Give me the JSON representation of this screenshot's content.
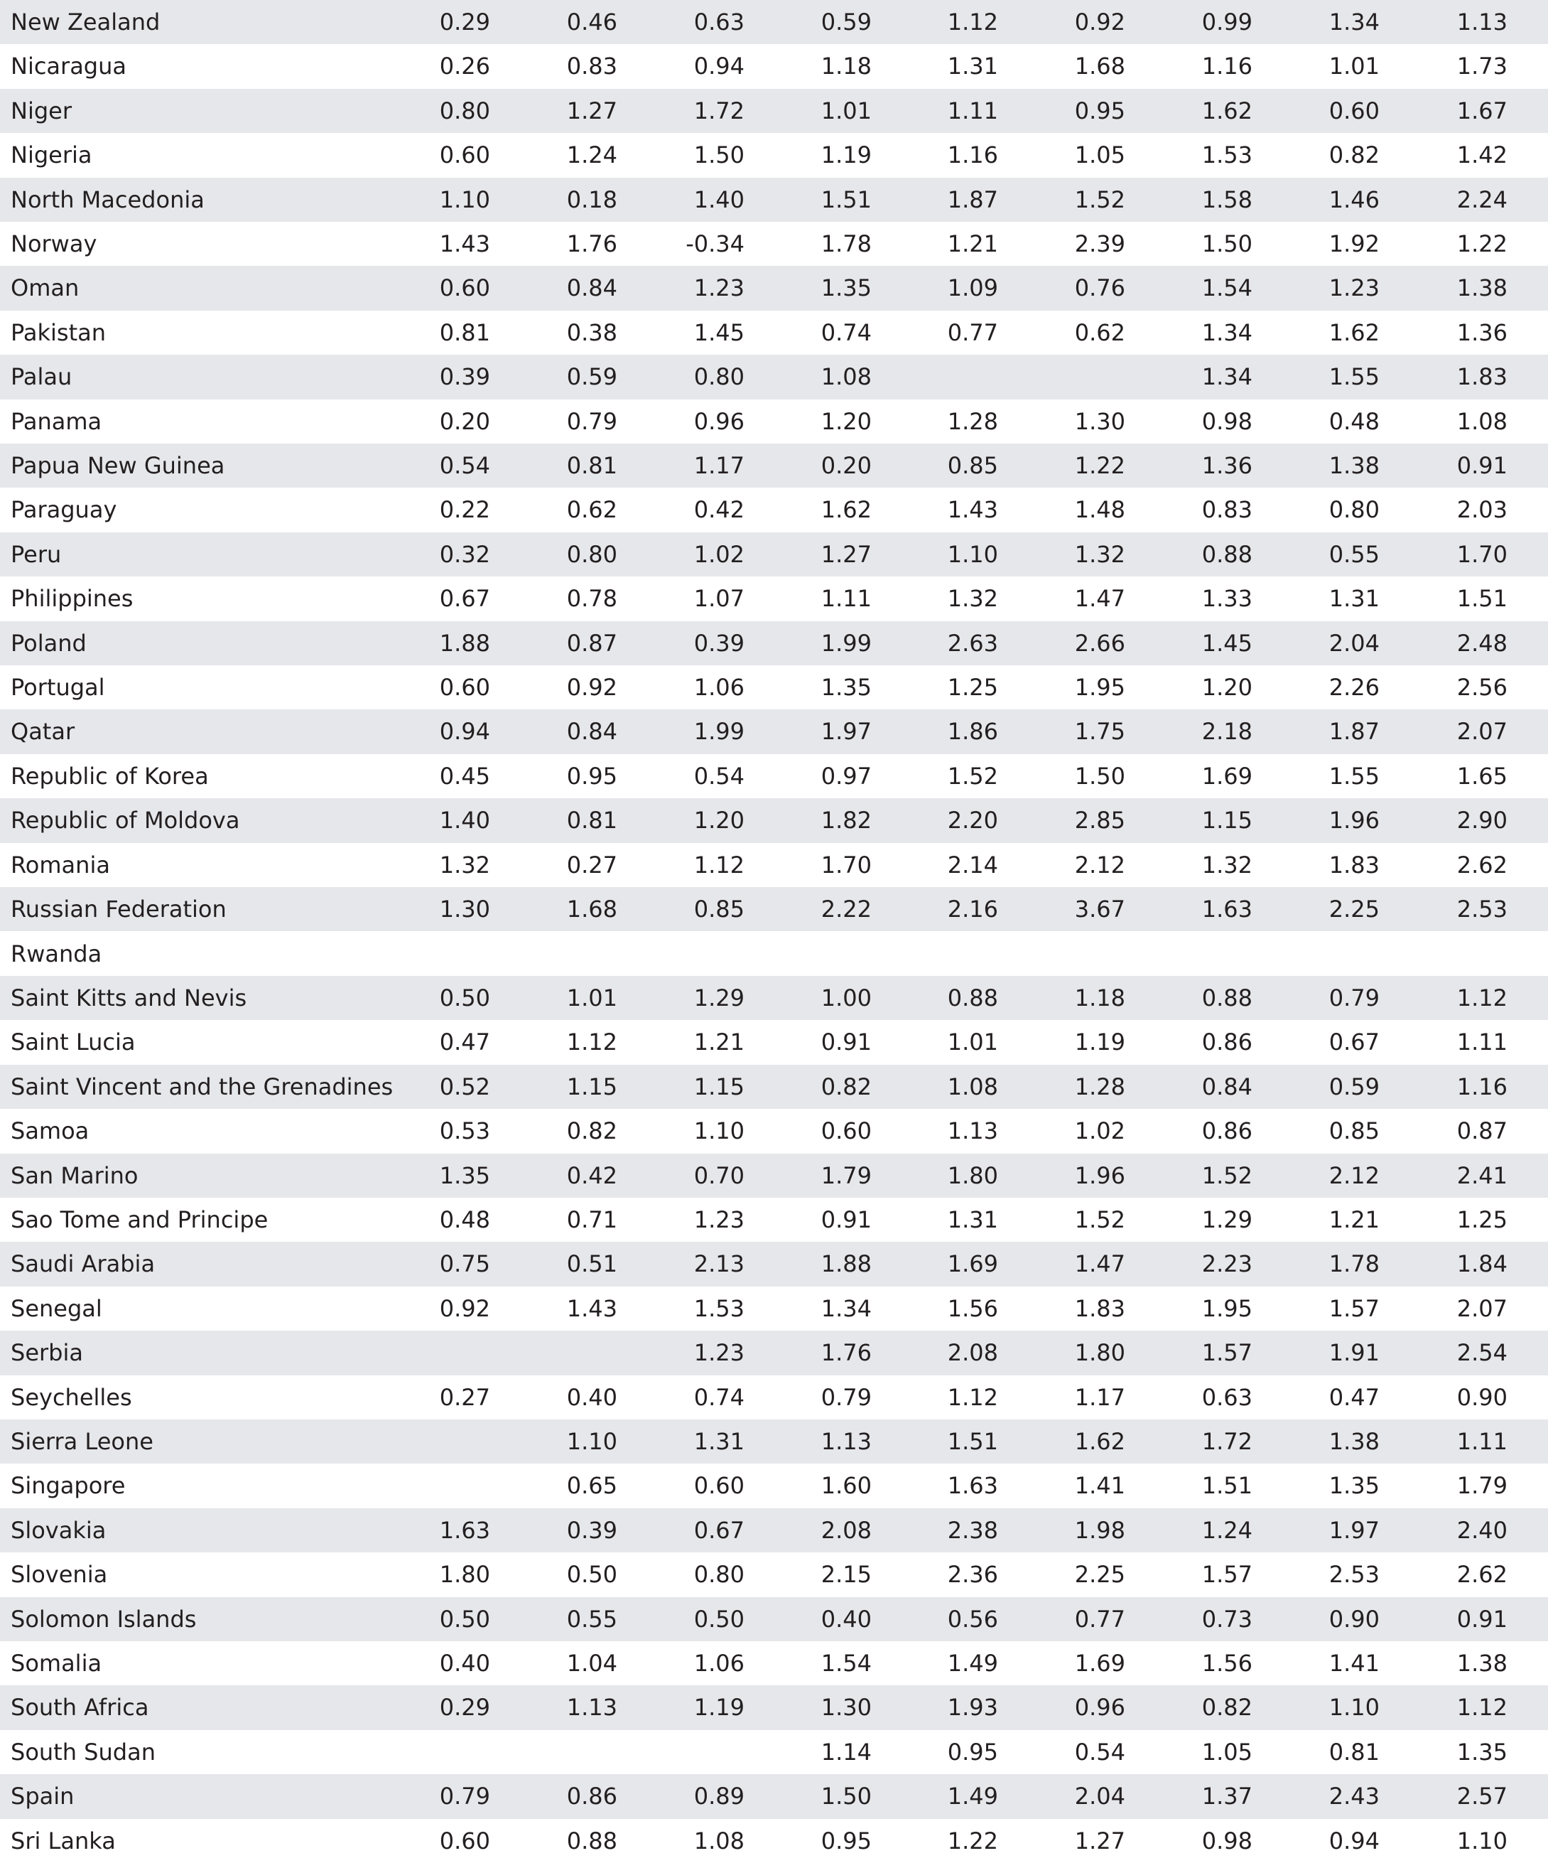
{
  "table": {
    "rows": [
      [
        "New Zealand",
        "0.29",
        "0.46",
        "0.63",
        "0.59",
        "1.12",
        "0.92",
        "0.99",
        "1.34",
        "1.13"
      ],
      [
        "Nicaragua",
        "0.26",
        "0.83",
        "0.94",
        "1.18",
        "1.31",
        "1.68",
        "1.16",
        "1.01",
        "1.73"
      ],
      [
        "Niger",
        "0.80",
        "1.27",
        "1.72",
        "1.01",
        "1.11",
        "0.95",
        "1.62",
        "0.60",
        "1.67"
      ],
      [
        "Nigeria",
        "0.60",
        "1.24",
        "1.50",
        "1.19",
        "1.16",
        "1.05",
        "1.53",
        "0.82",
        "1.42"
      ],
      [
        "North Macedonia",
        "1.10",
        "0.18",
        "1.40",
        "1.51",
        "1.87",
        "1.52",
        "1.58",
        "1.46",
        "2.24"
      ],
      [
        "Norway",
        "1.43",
        "1.76",
        "-0.34",
        "1.78",
        "1.21",
        "2.39",
        "1.50",
        "1.92",
        "1.22"
      ],
      [
        "Oman",
        "0.60",
        "0.84",
        "1.23",
        "1.35",
        "1.09",
        "0.76",
        "1.54",
        "1.23",
        "1.38"
      ],
      [
        "Pakistan",
        "0.81",
        "0.38",
        "1.45",
        "0.74",
        "0.77",
        "0.62",
        "1.34",
        "1.62",
        "1.36"
      ],
      [
        "Palau",
        "0.39",
        "0.59",
        "0.80",
        "1.08",
        null,
        null,
        "1.34",
        "1.55",
        "1.83"
      ],
      [
        "Panama",
        "0.20",
        "0.79",
        "0.96",
        "1.20",
        "1.28",
        "1.30",
        "0.98",
        "0.48",
        "1.08"
      ],
      [
        "Papua New Guinea",
        "0.54",
        "0.81",
        "1.17",
        "0.20",
        "0.85",
        "1.22",
        "1.36",
        "1.38",
        "0.91"
      ],
      [
        "Paraguay",
        "0.22",
        "0.62",
        "0.42",
        "1.62",
        "1.43",
        "1.48",
        "0.83",
        "0.80",
        "2.03"
      ],
      [
        "Peru",
        "0.32",
        "0.80",
        "1.02",
        "1.27",
        "1.10",
        "1.32",
        "0.88",
        "0.55",
        "1.70"
      ],
      [
        "Philippines",
        "0.67",
        "0.78",
        "1.07",
        "1.11",
        "1.32",
        "1.47",
        "1.33",
        "1.31",
        "1.51"
      ],
      [
        "Poland",
        "1.88",
        "0.87",
        "0.39",
        "1.99",
        "2.63",
        "2.66",
        "1.45",
        "2.04",
        "2.48"
      ],
      [
        "Portugal",
        "0.60",
        "0.92",
        "1.06",
        "1.35",
        "1.25",
        "1.95",
        "1.20",
        "2.26",
        "2.56"
      ],
      [
        "Qatar",
        "0.94",
        "0.84",
        "1.99",
        "1.97",
        "1.86",
        "1.75",
        "2.18",
        "1.87",
        "2.07"
      ],
      [
        "Republic of Korea",
        "0.45",
        "0.95",
        "0.54",
        "0.97",
        "1.52",
        "1.50",
        "1.69",
        "1.55",
        "1.65"
      ],
      [
        "Republic of Moldova",
        "1.40",
        "0.81",
        "1.20",
        "1.82",
        "2.20",
        "2.85",
        "1.15",
        "1.96",
        "2.90"
      ],
      [
        "Romania",
        "1.32",
        "0.27",
        "1.12",
        "1.70",
        "2.14",
        "2.12",
        "1.32",
        "1.83",
        "2.62"
      ],
      [
        "Russian Federation",
        "1.30",
        "1.68",
        "0.85",
        "2.22",
        "2.16",
        "3.67",
        "1.63",
        "2.25",
        "2.53"
      ],
      [
        "Rwanda",
        null,
        null,
        null,
        null,
        null,
        null,
        null,
        null,
        null
      ],
      [
        "Saint Kitts and Nevis",
        "0.50",
        "1.01",
        "1.29",
        "1.00",
        "0.88",
        "1.18",
        "0.88",
        "0.79",
        "1.12"
      ],
      [
        "Saint Lucia",
        "0.47",
        "1.12",
        "1.21",
        "0.91",
        "1.01",
        "1.19",
        "0.86",
        "0.67",
        "1.11"
      ],
      [
        "Saint Vincent and the Grenadines",
        "0.52",
        "1.15",
        "1.15",
        "0.82",
        "1.08",
        "1.28",
        "0.84",
        "0.59",
        "1.16"
      ],
      [
        "Samoa",
        "0.53",
        "0.82",
        "1.10",
        "0.60",
        "1.13",
        "1.02",
        "0.86",
        "0.85",
        "0.87"
      ],
      [
        "San Marino",
        "1.35",
        "0.42",
        "0.70",
        "1.79",
        "1.80",
        "1.96",
        "1.52",
        "2.12",
        "2.41"
      ],
      [
        "Sao Tome and Principe",
        "0.48",
        "0.71",
        "1.23",
        "0.91",
        "1.31",
        "1.52",
        "1.29",
        "1.21",
        "1.25"
      ],
      [
        "Saudi Arabia",
        "0.75",
        "0.51",
        "2.13",
        "1.88",
        "1.69",
        "1.47",
        "2.23",
        "1.78",
        "1.84"
      ],
      [
        "Senegal",
        "0.92",
        "1.43",
        "1.53",
        "1.34",
        "1.56",
        "1.83",
        "1.95",
        "1.57",
        "2.07"
      ],
      [
        "Serbia",
        null,
        null,
        "1.23",
        "1.76",
        "2.08",
        "1.80",
        "1.57",
        "1.91",
        "2.54"
      ],
      [
        "Seychelles",
        "0.27",
        "0.40",
        "0.74",
        "0.79",
        "1.12",
        "1.17",
        "0.63",
        "0.47",
        "0.90"
      ],
      [
        "Sierra Leone",
        null,
        "1.10",
        "1.31",
        "1.13",
        "1.51",
        "1.62",
        "1.72",
        "1.38",
        "1.11"
      ],
      [
        "Singapore",
        null,
        "0.65",
        "0.60",
        "1.60",
        "1.63",
        "1.41",
        "1.51",
        "1.35",
        "1.79"
      ],
      [
        "Slovakia",
        "1.63",
        "0.39",
        "0.67",
        "2.08",
        "2.38",
        "1.98",
        "1.24",
        "1.97",
        "2.40"
      ],
      [
        "Slovenia",
        "1.80",
        "0.50",
        "0.80",
        "2.15",
        "2.36",
        "2.25",
        "1.57",
        "2.53",
        "2.62"
      ],
      [
        "Solomon Islands",
        "0.50",
        "0.55",
        "0.50",
        "0.40",
        "0.56",
        "0.77",
        "0.73",
        "0.90",
        "0.91"
      ],
      [
        "Somalia",
        "0.40",
        "1.04",
        "1.06",
        "1.54",
        "1.49",
        "1.69",
        "1.56",
        "1.41",
        "1.38"
      ],
      [
        "South Africa",
        "0.29",
        "1.13",
        "1.19",
        "1.30",
        "1.93",
        "0.96",
        "0.82",
        "1.10",
        "1.12"
      ],
      [
        "South Sudan",
        null,
        null,
        null,
        "1.14",
        "0.95",
        "0.54",
        "1.05",
        "0.81",
        "1.35"
      ],
      [
        "Spain",
        "0.79",
        "0.86",
        "0.89",
        "1.50",
        "1.49",
        "2.04",
        "1.37",
        "2.43",
        "2.57"
      ],
      [
        "Sri Lanka",
        "0.60",
        "0.88",
        "1.08",
        "0.95",
        "1.22",
        "1.27",
        "0.98",
        "0.94",
        "1.10"
      ]
    ]
  }
}
